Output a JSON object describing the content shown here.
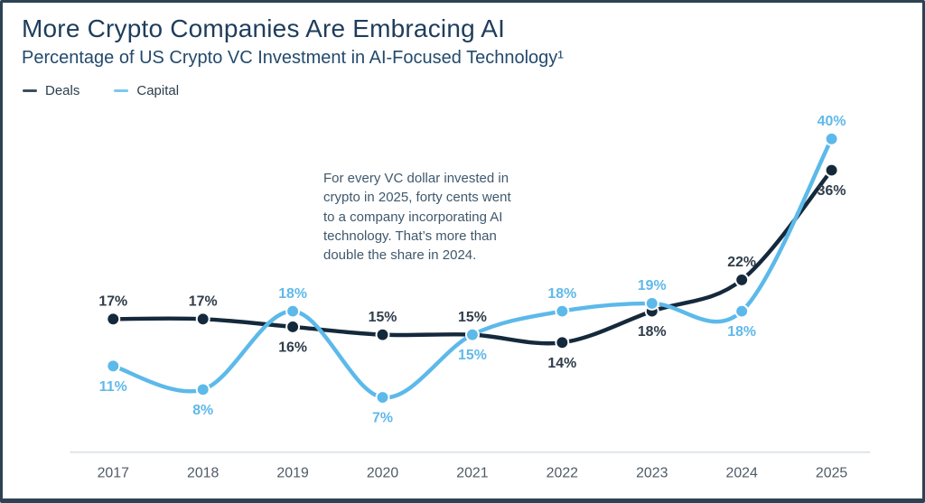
{
  "header": {
    "title": "More Crypto Companies Are Embracing AI",
    "subtitle": "Percentage of US Crypto VC Investment in AI-Focused Technology¹"
  },
  "legend": {
    "items": [
      {
        "label": "Deals",
        "color": "#3e4e5c"
      },
      {
        "label": "Capital",
        "color": "#7cc7ef"
      }
    ]
  },
  "annotation": {
    "text": "For every VC dollar invested in\ncrypto in 2025, forty cents went\nto a company incorporating AI\ntechnology. That’s more than\ndouble the share in 2024."
  },
  "colors": {
    "deals_line": "#15293c",
    "capital_line": "#5cb9ea",
    "deals_label": "#303d4b",
    "capital_label": "#60b9e9",
    "axis_line": "#e0e4e9",
    "axis_label": "#4f5b67"
  },
  "chart_data": {
    "type": "line",
    "x": [
      "2017",
      "2018",
      "2019",
      "2020",
      "2021",
      "2022",
      "2023",
      "2024",
      "2025"
    ],
    "series": [
      {
        "name": "Deals",
        "values": [
          17,
          17,
          16,
          15,
          15,
          14,
          18,
          22,
          36
        ],
        "label_positions": [
          "above",
          "above",
          "below",
          "above",
          "above",
          "below",
          "below",
          "above",
          "below"
        ]
      },
      {
        "name": "Capital",
        "values": [
          11,
          8,
          18,
          7,
          15,
          18,
          19,
          18,
          40
        ],
        "label_positions": [
          "below",
          "below",
          "above",
          "below",
          "below",
          "above",
          "above",
          "below",
          "above"
        ]
      }
    ],
    "title": "More Crypto Companies Are Embracing AI",
    "subtitle": "Percentage of US Crypto VC Investment in AI-Focused Technology¹",
    "xlabel": "",
    "ylabel": "",
    "ylim": [
      0,
      45
    ],
    "grid": false,
    "legend_position": "top-left",
    "value_suffix": "%"
  }
}
